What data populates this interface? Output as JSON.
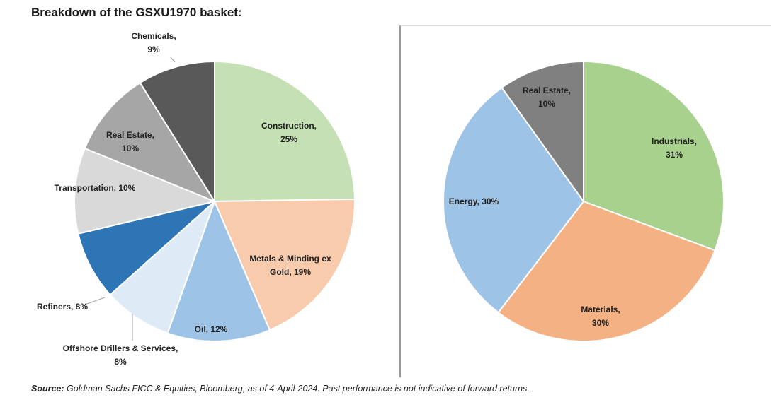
{
  "title": "Breakdown of the GSXU1970 basket:",
  "source": {
    "label": "Source:",
    "text": "Goldman Sachs FICC & Equities, Bloomberg, as of 4-April-2024. Past performance is not indicative of forward returns."
  },
  "chart_data": [
    {
      "type": "pie",
      "categories": [
        "Construction",
        "Metals & Minding ex Gold",
        "Oil",
        "Offshore Drillers & Services",
        "Refiners",
        "Transportation",
        "Real Estate",
        "Chemicals"
      ],
      "values": [
        25,
        19,
        12,
        8,
        8,
        10,
        10,
        9
      ],
      "labels": [
        "Construction,|25%",
        "Metals & Minding ex|Gold, 19%",
        "Oil, 12%",
        "Offshore Drillers & Services,|8%",
        "Refiners, 8%",
        "Transportation, 10%",
        "Real Estate,|10%",
        "Chemicals,|9%"
      ],
      "colors": [
        "#c5e0b4",
        "#f8cbad",
        "#9dc3e6",
        "#deebf7",
        "#2e75b6",
        "#d9d9d9",
        "#a6a6a6",
        "#595959"
      ],
      "start_angle": "12 o'clock",
      "direction": "clockwise"
    },
    {
      "type": "pie",
      "categories": [
        "Industrials",
        "Materials",
        "Energy",
        "Real Estate"
      ],
      "values": [
        31,
        30,
        30,
        10
      ],
      "labels": [
        "Industrials,|31%",
        "Materials,|30%",
        "Energy, 30%",
        "Real Estate,|10%"
      ],
      "colors": [
        "#a9d18e",
        "#f4b183",
        "#9dc3e6",
        "#808080"
      ],
      "start_angle": "12 o'clock",
      "direction": "clockwise"
    }
  ]
}
